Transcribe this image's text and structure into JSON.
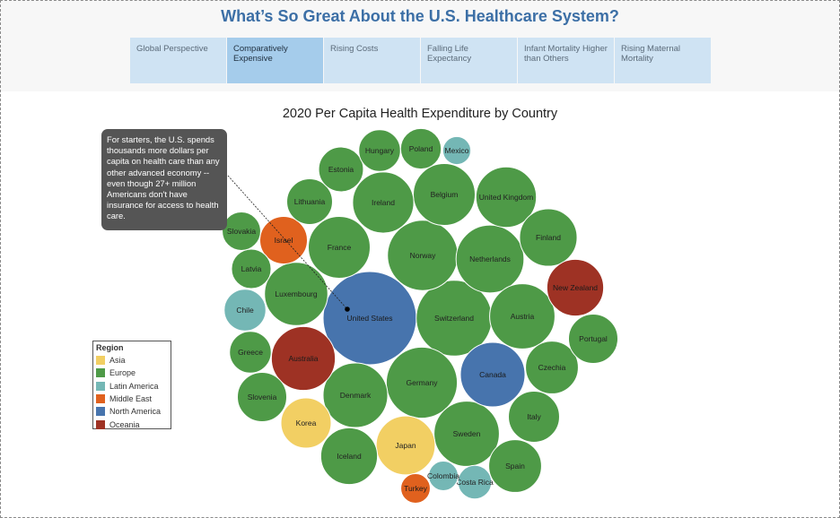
{
  "header": {
    "title": "What’s So Great About the U.S.  Healthcare System?"
  },
  "tabs": [
    {
      "label": "Global Perspective",
      "active": false
    },
    {
      "label": "Comparatively Expensive",
      "active": true
    },
    {
      "label": "Rising Costs",
      "active": false
    },
    {
      "label": "Falling Life Expectancy",
      "active": false
    },
    {
      "label": "Infant Mortality Higher than Others",
      "active": false
    },
    {
      "label": "Rising Maternal Mortality",
      "active": false
    }
  ],
  "callout": {
    "text": "For starters, the U.S. spends thousands more dollars per capita on health care than any other advanced economy -- even though 27+ million Americans don't have insurance for access to health care."
  },
  "legend": {
    "title": "Region",
    "items": [
      {
        "label": "Asia",
        "color": "#f2cf63"
      },
      {
        "label": "Europe",
        "color": "#4e9a47"
      },
      {
        "label": "Latin America",
        "color": "#74b7b5"
      },
      {
        "label": "Middle East",
        "color": "#e0611e"
      },
      {
        "label": "North America",
        "color": "#4774ad"
      },
      {
        "label": "Oceania",
        "color": "#9e3224"
      }
    ]
  },
  "chart_data": {
    "type": "bubble",
    "title": "2020 Per Capita Health Expenditure by Country",
    "note": "Bubble size encodes per capita health expenditure; values are relative sizes read from the bubbles (no values printed).",
    "points": [
      {
        "label": "United States",
        "region": "North America",
        "value": 100
      },
      {
        "label": "Switzerland",
        "region": "Europe",
        "value": 66
      },
      {
        "label": "Germany",
        "region": "Europe",
        "value": 58
      },
      {
        "label": "Norway",
        "region": "Europe",
        "value": 57
      },
      {
        "label": "Netherlands",
        "region": "Europe",
        "value": 53
      },
      {
        "label": "Sweden",
        "region": "Europe",
        "value": 49
      },
      {
        "label": "Austria",
        "region": "Europe",
        "value": 49
      },
      {
        "label": "Denmark",
        "region": "Europe",
        "value": 48
      },
      {
        "label": "Canada",
        "region": "North America",
        "value": 48
      },
      {
        "label": "Australia",
        "region": "Oceania",
        "value": 47
      },
      {
        "label": "Belgium",
        "region": "Europe",
        "value": 44
      },
      {
        "label": "France",
        "region": "Europe",
        "value": 44
      },
      {
        "label": "United Kingdom",
        "region": "Europe",
        "value": 42
      },
      {
        "label": "Luxembourg",
        "region": "Europe",
        "value": 46
      },
      {
        "label": "Ireland",
        "region": "Europe",
        "value": 43
      },
      {
        "label": "Japan",
        "region": "Asia",
        "value": 40
      },
      {
        "label": "Iceland",
        "region": "Europe",
        "value": 37
      },
      {
        "label": "Finland",
        "region": "Europe",
        "value": 38
      },
      {
        "label": "New Zealand",
        "region": "Oceania",
        "value": 37
      },
      {
        "label": "Korea",
        "region": "Asia",
        "value": 29
      },
      {
        "label": "Czechia",
        "region": "Europe",
        "value": 32
      },
      {
        "label": "Spain",
        "region": "Europe",
        "value": 32
      },
      {
        "label": "Italy",
        "region": "Europe",
        "value": 30
      },
      {
        "label": "Portugal",
        "region": "Europe",
        "value": 28
      },
      {
        "label": "Slovenia",
        "region": "Europe",
        "value": 28
      },
      {
        "label": "Israel",
        "region": "Middle East",
        "value": 26
      },
      {
        "label": "Lithuania",
        "region": "Europe",
        "value": 24
      },
      {
        "label": "Estonia",
        "region": "Europe",
        "value": 23
      },
      {
        "label": "Hungary",
        "region": "Europe",
        "value": 20
      },
      {
        "label": "Poland",
        "region": "Europe",
        "value": 19
      },
      {
        "label": "Greece",
        "region": "Europe",
        "value": 20
      },
      {
        "label": "Latvia",
        "region": "Europe",
        "value": 18
      },
      {
        "label": "Chile",
        "region": "Latin America",
        "value": 20
      },
      {
        "label": "Slovakia",
        "region": "Europe",
        "value": 17
      },
      {
        "label": "Costa Rica",
        "region": "Latin America",
        "value": 13
      },
      {
        "label": "Colombia",
        "region": "Latin America",
        "value": 10
      },
      {
        "label": "Mexico",
        "region": "Latin America",
        "value": 9
      },
      {
        "label": "Turkey",
        "region": "Middle East",
        "value": 10
      }
    ]
  }
}
